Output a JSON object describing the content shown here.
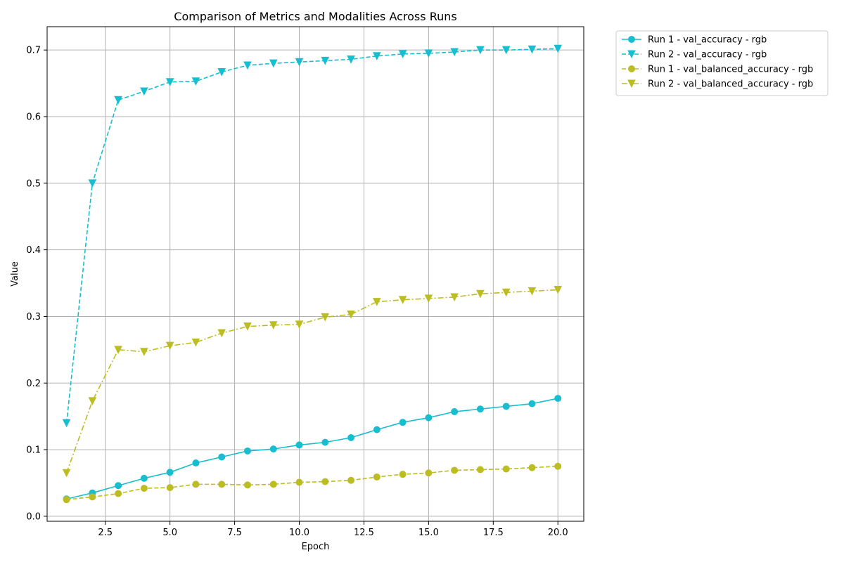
{
  "chart_data": {
    "type": "line",
    "title": "Comparison of Metrics and Modalities Across Runs",
    "xlabel": "Epoch",
    "ylabel": "Value",
    "xlim": [
      0.25,
      21.0
    ],
    "ylim": [
      -0.0075,
      0.735
    ],
    "xticks": [
      2.5,
      5.0,
      7.5,
      10.0,
      12.5,
      15.0,
      17.5,
      20.0
    ],
    "xtick_labels": [
      "2.5",
      "5.0",
      "7.5",
      "10.0",
      "12.5",
      "15.0",
      "17.5",
      "20.0"
    ],
    "yticks": [
      0.0,
      0.1,
      0.2,
      0.3,
      0.4,
      0.5,
      0.6,
      0.7
    ],
    "ytick_labels": [
      "0.0",
      "0.1",
      "0.2",
      "0.3",
      "0.4",
      "0.5",
      "0.6",
      "0.7"
    ],
    "grid": true,
    "legend_position": "outside-top-right",
    "x": [
      1,
      2,
      3,
      4,
      5,
      6,
      7,
      8,
      9,
      10,
      11,
      12,
      13,
      14,
      15,
      16,
      17,
      18,
      19,
      20
    ],
    "series": [
      {
        "name": "Run 1 - val_accuracy - rgb",
        "color": "#17becf",
        "linestyle": "solid",
        "marker": "circle",
        "values": [
          0.026,
          0.035,
          0.046,
          0.057,
          0.066,
          0.08,
          0.089,
          0.098,
          0.101,
          0.107,
          0.111,
          0.118,
          0.13,
          0.141,
          0.148,
          0.157,
          0.161,
          0.165,
          0.169,
          0.177
        ]
      },
      {
        "name": "Run 2 - val_accuracy - rgb",
        "color": "#17becf",
        "linestyle": "dashed",
        "marker": "triangle-down",
        "values": [
          0.14,
          0.5,
          0.625,
          0.638,
          0.652,
          0.653,
          0.667,
          0.677,
          0.68,
          0.682,
          0.684,
          0.686,
          0.691,
          0.694,
          0.695,
          0.697,
          0.7,
          0.7,
          0.701,
          0.702
        ]
      },
      {
        "name": "Run 1 - val_balanced_accuracy - rgb",
        "color": "#bcbd22",
        "linestyle": "dashed",
        "marker": "circle",
        "values": [
          0.025,
          0.029,
          0.034,
          0.042,
          0.043,
          0.048,
          0.048,
          0.047,
          0.048,
          0.051,
          0.052,
          0.054,
          0.059,
          0.063,
          0.065,
          0.069,
          0.07,
          0.071,
          0.073,
          0.075
        ]
      },
      {
        "name": "Run 2 - val_balanced_accuracy - rgb",
        "color": "#bcbd22",
        "linestyle": "dashdot",
        "marker": "triangle-down",
        "values": [
          0.065,
          0.173,
          0.25,
          0.247,
          0.256,
          0.261,
          0.275,
          0.285,
          0.287,
          0.288,
          0.299,
          0.303,
          0.322,
          0.325,
          0.327,
          0.329,
          0.334,
          0.336,
          0.338,
          0.34
        ]
      }
    ]
  }
}
